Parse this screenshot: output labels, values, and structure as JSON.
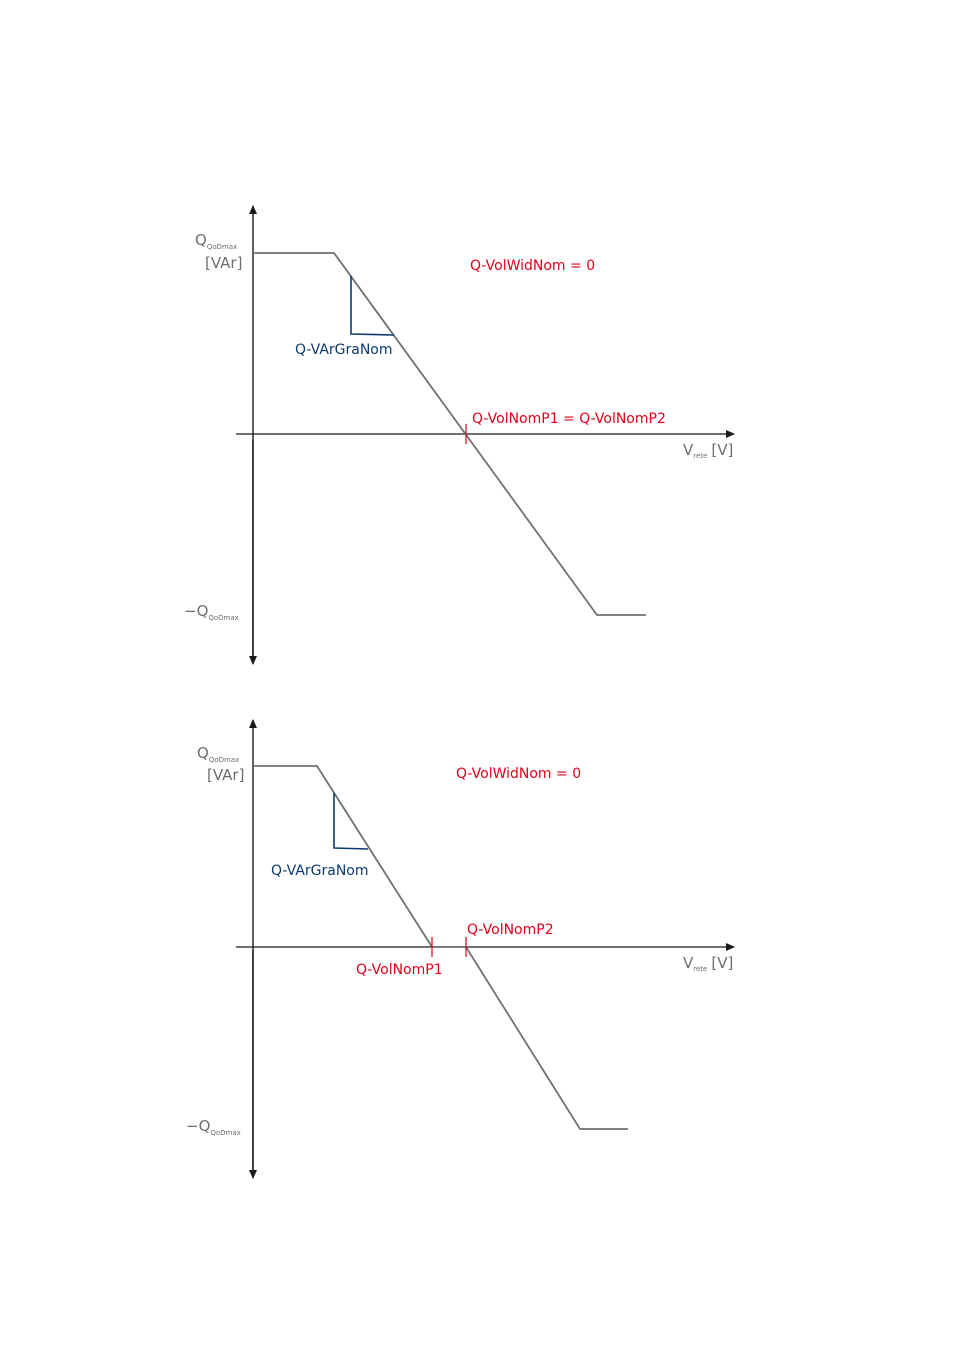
{
  "colors": {
    "axis": "#1a1a1a",
    "curve": "#707070",
    "parameter": "#e2001a",
    "gradient": "#0d3a6e",
    "label": "#6e6e6e"
  },
  "diagram_top": {
    "y_label_main": "Q",
    "y_label_sub": "QoDmax",
    "y_unit": "[VAr]",
    "y_neg_prefix": "−Q",
    "y_neg_sub": "QoDmax",
    "x_label_main": "V",
    "x_label_sub": "rete",
    "x_unit": "[V]",
    "width_label": "Q-VolWidNom = 0",
    "gradient_label": "Q-VArGraNom",
    "point_label": "Q-VolNomP1 = Q-VolNomP2"
  },
  "diagram_bottom": {
    "y_label_main": "Q",
    "y_label_sub": "QoDmax",
    "y_unit": "[VAr]",
    "y_neg_prefix": "−Q",
    "y_neg_sub": "QoDmax",
    "x_label_main": "V",
    "x_label_sub": "rete",
    "x_unit": "[V]",
    "width_label": "Q-VolWidNom = 0",
    "gradient_label": "Q-VArGraNom",
    "p1_label": "Q-VolNomP1",
    "p2_label": "Q-VolNomP2"
  }
}
